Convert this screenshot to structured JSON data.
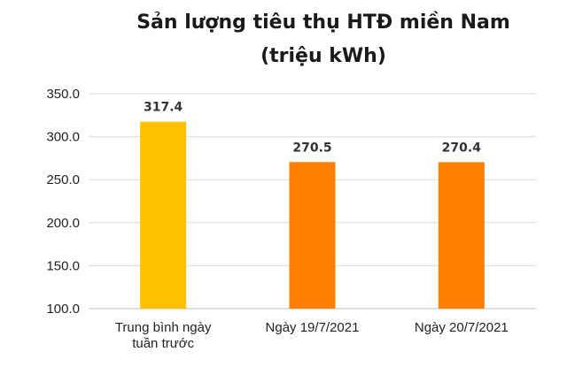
{
  "chart_data": {
    "type": "bar",
    "title": "Sản lượng tiêu thụ HTĐ miền Nam",
    "subtitle": "(triệu kWh)",
    "categories": [
      [
        "Trung bình ngày",
        "tuần trước"
      ],
      [
        "Ngày 19/7/2021"
      ],
      [
        "Ngày 20/7/2021"
      ]
    ],
    "values": [
      317.4,
      270.5,
      270.4
    ],
    "value_labels": [
      "317.4",
      "270.5",
      "270.4"
    ],
    "bar_colors": [
      "#FFC000",
      "#FF7F00",
      "#FF7F00"
    ],
    "ylim": [
      100,
      350
    ],
    "yticks": [
      100,
      150,
      200,
      250,
      300,
      350
    ],
    "ytick_labels": [
      "100.0",
      "150.0",
      "200.0",
      "250.0",
      "300.0",
      "350.0"
    ],
    "grid": true,
    "grid_color": "#d9d9d9",
    "legend": "none"
  }
}
